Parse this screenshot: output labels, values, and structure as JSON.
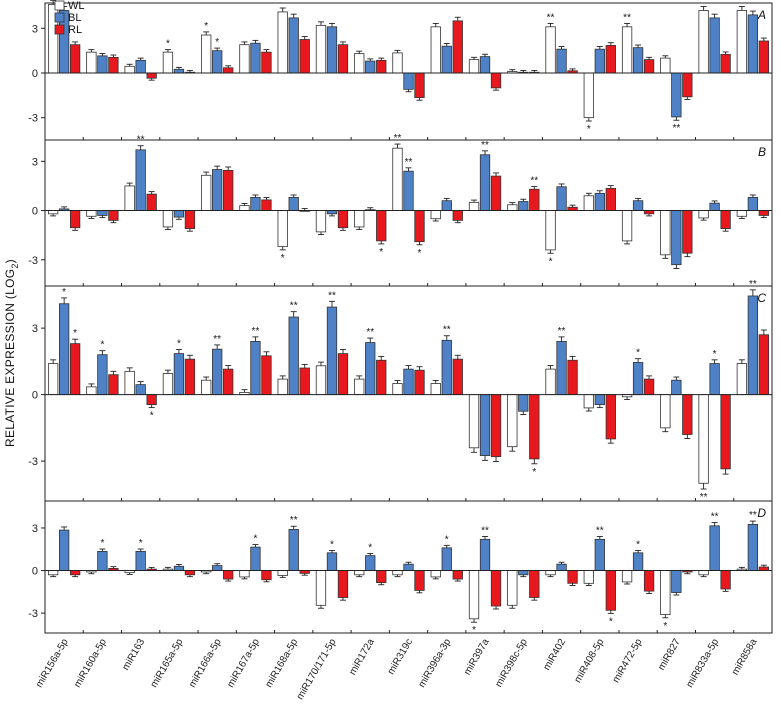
{
  "chart_data": {
    "type": "bar",
    "ylabel": "RELATIVE EXPRESSION (LOG",
    "ylabel_sub": "2",
    "ylabel_close": ")",
    "legend": [
      {
        "name": "WL",
        "color": "#ffffff"
      },
      {
        "name": "BL",
        "color": "#4f81c7"
      },
      {
        "name": "RL",
        "color": "#e8191e"
      }
    ],
    "legend_position": "top-left",
    "categories": [
      "miR156a-5p",
      "miR160a-5p",
      "miR163",
      "miR165a-5p",
      "miR166a-5p",
      "miR167a-5p",
      "miR168a-5p",
      "miR170/171-5p",
      "miR172a",
      "miR319c",
      "miR396a-3p",
      "miR397a",
      "miR398c-5p",
      "miR402",
      "miR408-5p",
      "miR472-5p",
      "miR827",
      "miR833a-5p",
      "miR858a"
    ],
    "panels": [
      {
        "label": "A",
        "ylim": [
          -4.5,
          4.7
        ],
        "yticks": [
          -3,
          0,
          3
        ],
        "series": [
          {
            "name": "WL",
            "values": [
              4.6,
              1.4,
              0.45,
              1.4,
              2.55,
              1.9,
              4.1,
              3.2,
              1.3,
              1.35,
              3.1,
              0.9,
              0.1,
              3.1,
              -3.0,
              3.1,
              1.0,
              4.2,
              4.2
            ]
          },
          {
            "name": "BL",
            "values": [
              4.2,
              1.15,
              0.85,
              0.25,
              1.5,
              2.0,
              3.7,
              3.1,
              0.8,
              -1.1,
              1.8,
              1.1,
              0.05,
              1.6,
              1.6,
              1.7,
              -2.95,
              3.7,
              3.9
            ]
          },
          {
            "name": "RL",
            "values": [
              1.9,
              1.05,
              -0.35,
              0.05,
              0.35,
              1.4,
              2.25,
              1.9,
              0.85,
              -1.65,
              3.5,
              -1.0,
              0.05,
              0.15,
              1.85,
              0.9,
              -1.6,
              1.25,
              2.15
            ]
          }
        ],
        "stars": [
          {
            "category": "miR165a-5p",
            "series": "WL",
            "mark": "*"
          },
          {
            "category": "miR166a-5p",
            "series": "WL",
            "mark": "*"
          },
          {
            "category": "miR166a-5p",
            "series": "BL",
            "mark": "*"
          },
          {
            "category": "miR402",
            "series": "WL",
            "mark": "**"
          },
          {
            "category": "miR408-5p",
            "series": "WL",
            "mark": "*"
          },
          {
            "category": "miR472-5p",
            "series": "WL",
            "mark": "**"
          },
          {
            "category": "miR827",
            "series": "BL",
            "mark": "**"
          }
        ]
      },
      {
        "label": "B",
        "ylim": [
          -4.6,
          4.3
        ],
        "yticks": [
          -3,
          0,
          3
        ],
        "series": [
          {
            "name": "WL",
            "values": [
              -0.2,
              -0.35,
              1.5,
              -1.0,
              2.15,
              0.3,
              -2.2,
              -1.3,
              -1.0,
              3.8,
              -0.5,
              0.5,
              0.35,
              -2.4,
              0.9,
              -1.85,
              -2.7,
              -0.45,
              -0.35
            ]
          },
          {
            "name": "BL",
            "values": [
              0.1,
              -0.3,
              3.7,
              -0.4,
              2.5,
              0.8,
              0.8,
              -0.2,
              0.05,
              2.4,
              0.6,
              3.4,
              0.55,
              1.45,
              1.05,
              0.6,
              -3.3,
              0.45,
              0.8
            ]
          },
          {
            "name": "RL",
            "values": [
              -1.05,
              -0.6,
              1.0,
              -1.1,
              2.45,
              0.65,
              0.0,
              -1.05,
              -1.85,
              -1.9,
              -0.6,
              2.1,
              1.3,
              0.2,
              1.35,
              -0.2,
              -2.6,
              -1.1,
              -0.3
            ]
          }
        ],
        "stars": [
          {
            "category": "miR163",
            "series": "BL",
            "mark": "**"
          },
          {
            "category": "miR168a-5p",
            "series": "WL",
            "mark": "*"
          },
          {
            "category": "miR172a",
            "series": "RL",
            "mark": "*"
          },
          {
            "category": "miR319c",
            "series": "WL",
            "mark": "**"
          },
          {
            "category": "miR319c",
            "series": "BL",
            "mark": "**"
          },
          {
            "category": "miR319c",
            "series": "RL",
            "mark": "*"
          },
          {
            "category": "miR397a",
            "series": "BL",
            "mark": "**"
          },
          {
            "category": "miR398c-5p",
            "series": "RL",
            "mark": "**"
          },
          {
            "category": "miR402",
            "series": "WL",
            "mark": "*"
          }
        ]
      },
      {
        "label": "C",
        "ylim": [
          -4.8,
          4.9
        ],
        "yticks": [
          -3,
          0,
          3
        ],
        "series": [
          {
            "name": "WL",
            "values": [
              1.4,
              0.35,
              1.05,
              0.95,
              0.65,
              0.1,
              0.7,
              1.3,
              0.7,
              0.5,
              0.5,
              -2.4,
              -2.35,
              1.15,
              -0.6,
              -0.1,
              -1.5,
              -4.0,
              1.4
            ]
          },
          {
            "name": "BL",
            "values": [
              4.1,
              1.8,
              0.45,
              1.85,
              2.05,
              2.4,
              3.5,
              3.95,
              2.35,
              1.15,
              2.45,
              -2.75,
              -0.75,
              2.4,
              -0.45,
              1.45,
              0.65,
              1.4,
              4.45
            ]
          },
          {
            "name": "RL",
            "values": [
              2.3,
              0.9,
              -0.45,
              1.6,
              1.15,
              1.75,
              1.2,
              1.85,
              1.55,
              1.1,
              1.6,
              -2.8,
              -2.9,
              1.55,
              -2.0,
              0.7,
              -1.8,
              -3.35,
              2.7
            ]
          }
        ],
        "stars": [
          {
            "category": "miR156a-5p",
            "series": "BL",
            "mark": "*"
          },
          {
            "category": "miR156a-5p",
            "series": "RL",
            "mark": "*"
          },
          {
            "category": "miR160a-5p",
            "series": "BL",
            "mark": "*"
          },
          {
            "category": "miR163",
            "series": "RL",
            "mark": "*"
          },
          {
            "category": "miR165a-5p",
            "series": "BL",
            "mark": "*"
          },
          {
            "category": "miR166a-5p",
            "series": "BL",
            "mark": "**"
          },
          {
            "category": "miR167a-5p",
            "series": "BL",
            "mark": "**"
          },
          {
            "category": "miR168a-5p",
            "series": "BL",
            "mark": "**"
          },
          {
            "category": "miR170/171-5p",
            "series": "BL",
            "mark": "**"
          },
          {
            "category": "miR172a",
            "series": "BL",
            "mark": "**"
          },
          {
            "category": "miR396a-3p",
            "series": "BL",
            "mark": "**"
          },
          {
            "category": "miR398c-5p",
            "series": "RL",
            "mark": "*"
          },
          {
            "category": "miR402",
            "series": "BL",
            "mark": "**"
          },
          {
            "category": "miR472-5p",
            "series": "BL",
            "mark": "*"
          },
          {
            "category": "miR833a-5p",
            "series": "WL",
            "mark": "**"
          },
          {
            "category": "miR833a-5p",
            "series": "BL",
            "mark": "*"
          },
          {
            "category": "miR858a",
            "series": "BL",
            "mark": "**"
          }
        ]
      },
      {
        "label": "D",
        "ylim": [
          -4.4,
          4.9
        ],
        "yticks": [
          -3,
          0,
          3
        ],
        "series": [
          {
            "name": "WL",
            "values": [
              -0.3,
              -0.1,
              -0.15,
              0.1,
              -0.1,
              -0.45,
              -0.35,
              -2.45,
              -0.3,
              -0.3,
              -0.45,
              -3.4,
              -2.45,
              -0.3,
              -0.9,
              -0.8,
              -3.1,
              -0.3,
              0.1
            ]
          },
          {
            "name": "BL",
            "values": [
              2.85,
              1.35,
              1.35,
              0.3,
              0.35,
              1.65,
              2.9,
              1.25,
              1.05,
              0.45,
              1.6,
              2.2,
              -0.3,
              0.45,
              2.2,
              1.25,
              -1.55,
              3.15,
              3.25
            ]
          },
          {
            "name": "RL",
            "values": [
              -0.3,
              0.15,
              0.1,
              -0.3,
              -0.6,
              -0.65,
              -0.2,
              -1.9,
              -0.85,
              -1.4,
              -0.6,
              -2.5,
              -1.9,
              -0.9,
              -2.8,
              -1.45,
              -0.1,
              -1.3,
              0.25
            ]
          }
        ],
        "stars": [
          {
            "category": "miR160a-5p",
            "series": "BL",
            "mark": "*"
          },
          {
            "category": "miR163",
            "series": "BL",
            "mark": "*"
          },
          {
            "category": "miR167a-5p",
            "series": "BL",
            "mark": "*"
          },
          {
            "category": "miR168a-5p",
            "series": "BL",
            "mark": "**"
          },
          {
            "category": "miR170/171-5p",
            "series": "BL",
            "mark": "*"
          },
          {
            "category": "miR172a",
            "series": "BL",
            "mark": "*"
          },
          {
            "category": "miR396a-3p",
            "series": "BL",
            "mark": "*"
          },
          {
            "category": "miR397a",
            "series": "WL",
            "mark": "*"
          },
          {
            "category": "miR397a",
            "series": "BL",
            "mark": "**"
          },
          {
            "category": "miR408-5p",
            "series": "BL",
            "mark": "**"
          },
          {
            "category": "miR408-5p",
            "series": "RL",
            "mark": "*"
          },
          {
            "category": "miR472-5p",
            "series": "BL",
            "mark": "*"
          },
          {
            "category": "miR827",
            "series": "WL",
            "mark": "*"
          },
          {
            "category": "miR833a-5p",
            "series": "BL",
            "mark": "**"
          },
          {
            "category": "miR858a",
            "series": "BL",
            "mark": "**"
          }
        ]
      }
    ]
  }
}
